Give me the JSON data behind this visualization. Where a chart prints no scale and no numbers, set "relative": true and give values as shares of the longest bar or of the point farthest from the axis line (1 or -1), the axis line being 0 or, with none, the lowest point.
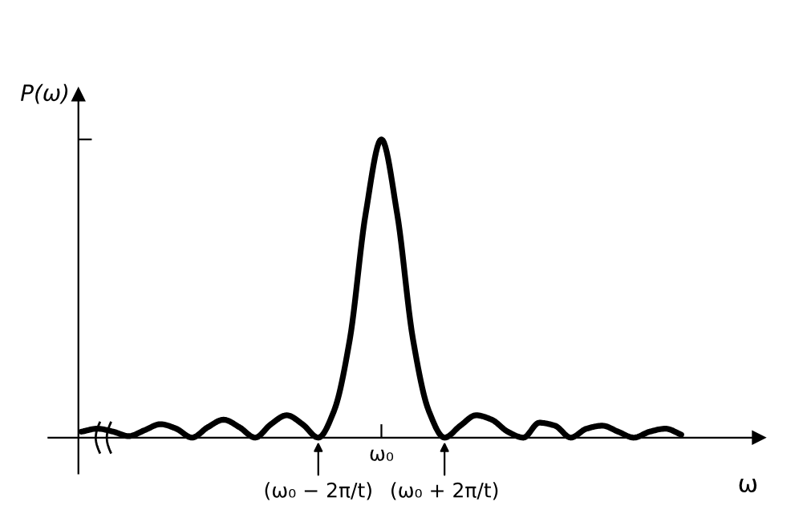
{
  "chart_data": {
    "type": "line",
    "relative": true,
    "xlabel": "ω",
    "ylabel": "P(ω)",
    "categories": [
      null,
      null,
      null,
      null,
      null,
      null,
      null,
      null,
      null,
      null,
      null,
      null,
      null,
      null,
      null,
      "(ω₀ − 2π/t)",
      null,
      null,
      null,
      "ω₀",
      null,
      null,
      null,
      "(ω₀ + 2π/t)",
      null,
      null,
      null,
      null,
      null,
      null,
      null,
      null,
      null,
      null,
      null,
      null,
      null,
      null,
      null
    ],
    "grid": false,
    "marker": "none",
    "line_style": "solid",
    "series": [
      {
        "color": "#000000",
        "values": [
          0.02,
          0.03,
          0.02,
          0.005,
          0.025,
          0.045,
          0.03,
          0,
          0.035,
          0.06,
          0.035,
          0,
          0.045,
          0.075,
          0.045,
          0,
          0.09,
          0.33,
          0.75,
          1,
          0.75,
          0.33,
          0.09,
          0,
          0.04,
          0.075,
          0.06,
          0.02,
          0,
          0.05,
          0.04,
          0,
          0.03,
          0.04,
          0.02,
          0,
          0.02,
          0.03,
          0.01
        ]
      }
    ]
  }
}
